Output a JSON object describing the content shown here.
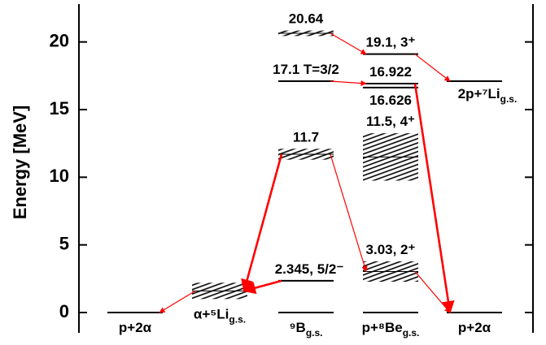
{
  "chart_data": {
    "type": "level-scheme",
    "y_label": "Energy [MeV]",
    "ylim": [
      -1.5,
      22.8
    ],
    "yticks": [
      0,
      5,
      10,
      15,
      20
    ],
    "color": "#000000",
    "arrow_color": "#ff0000",
    "levels": [
      {
        "column": 0,
        "energy": 0,
        "label": "p+2α"
      },
      {
        "column": 1,
        "energy": 1.6,
        "width": 1.2,
        "label": "α+⁵Li",
        "sub": "g.s."
      },
      {
        "column": 2,
        "energy": 0,
        "label": "⁹B",
        "sub": "g.s."
      },
      {
        "column": 2,
        "energy": 2.345,
        "label": "2.345, 5/2⁻"
      },
      {
        "column": 2,
        "energy": 11.7,
        "width": 0.8,
        "label": "11.7"
      },
      {
        "column": 2,
        "energy": 17.1,
        "label": "17.1 T=3/2"
      },
      {
        "column": 2,
        "energy": 20.64,
        "width": 0.4,
        "label": "20.64"
      },
      {
        "column": 3,
        "energy": 0,
        "label": "p+⁸Be",
        "sub": "g.s."
      },
      {
        "column": 3,
        "energy": 3.03,
        "width": 1.5,
        "label": "3.03, 2⁺"
      },
      {
        "column": 3,
        "energy": 11.5,
        "width": 3.5,
        "label": "11.5, 4⁺"
      },
      {
        "column": 3,
        "energy": 16.626,
        "label": "16.626"
      },
      {
        "column": 3,
        "energy": 16.922,
        "label": "16.922"
      },
      {
        "column": 3,
        "energy": 19.1,
        "label": "19.1, 3⁺"
      },
      {
        "column": 4,
        "energy": 0,
        "label": "p+2α"
      },
      {
        "column": 4,
        "energy": 17.1,
        "label": "2p+⁷Li",
        "sub": "g.s."
      }
    ],
    "transitions": [
      {
        "from": 6,
        "to": 12,
        "thick": false
      },
      {
        "from": 5,
        "to": 11,
        "thick": false
      },
      {
        "from": 12,
        "to": 14,
        "thick": false
      },
      {
        "from": 11,
        "to": 13,
        "thick": true
      },
      {
        "from": 4,
        "to": 1,
        "thick": true
      },
      {
        "from": 4,
        "to": 8,
        "thick": false
      },
      {
        "from": 3,
        "to": 1,
        "thick": true
      },
      {
        "from": 1,
        "to": 0,
        "thick": false
      },
      {
        "from": 8,
        "to": 13,
        "thick": false
      }
    ]
  }
}
